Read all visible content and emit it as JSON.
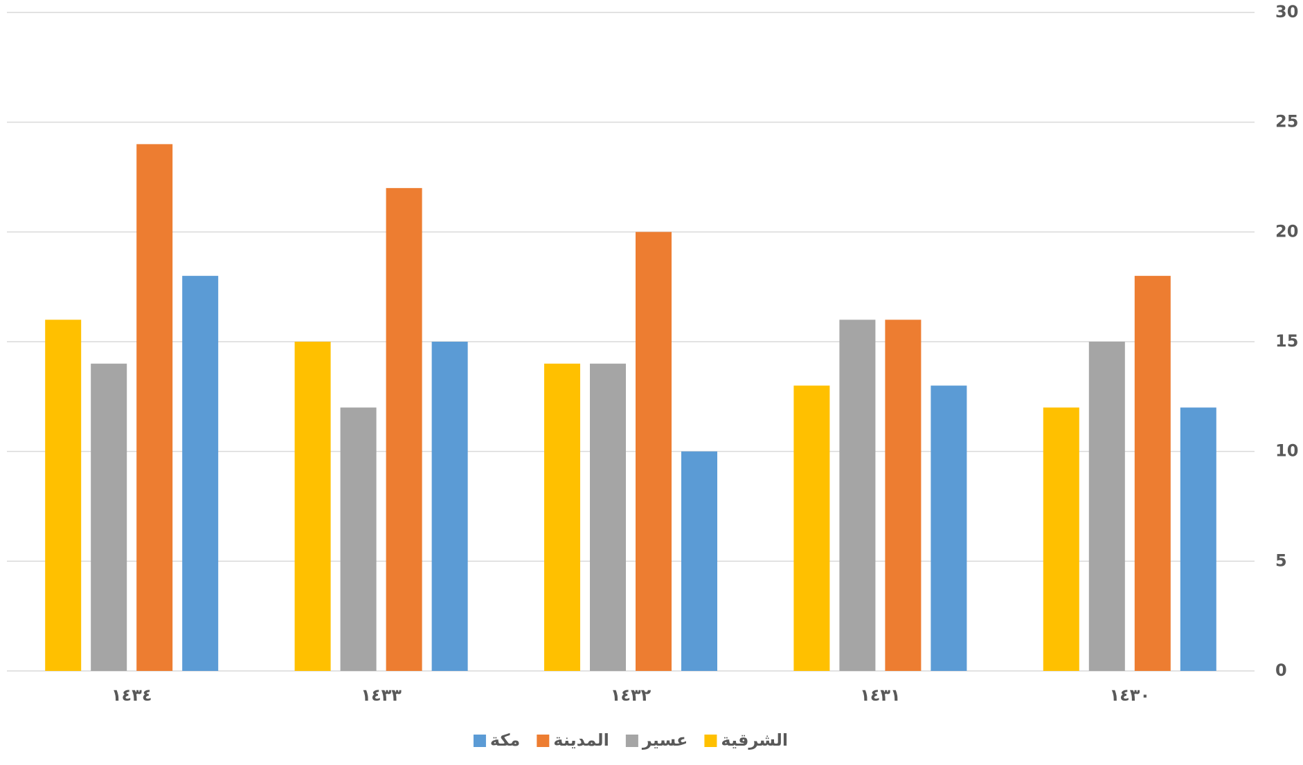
{
  "chart_data": {
    "type": "bar",
    "categories": [
      "١٤٣٤",
      "١٤٣٣",
      "١٤٣٢",
      "١٤٣١",
      "١٤٣٠"
    ],
    "series": [
      {
        "name": "الشرقية",
        "color": "#ffc000",
        "values": [
          16,
          15,
          14,
          13,
          12
        ]
      },
      {
        "name": "عسير",
        "color": "#a5a5a5",
        "values": [
          14,
          12,
          14,
          16,
          15
        ]
      },
      {
        "name": "المدينة",
        "color": "#ed7d31",
        "values": [
          24,
          22,
          20,
          16,
          18
        ]
      },
      {
        "name": "مكة",
        "color": "#5b9bd5",
        "values": [
          18,
          15,
          10,
          13,
          12
        ]
      }
    ],
    "ylim": [
      0,
      30
    ],
    "yticks": [
      0,
      5,
      10,
      15,
      20,
      25,
      30
    ],
    "grid": true,
    "legend": "bottom"
  }
}
